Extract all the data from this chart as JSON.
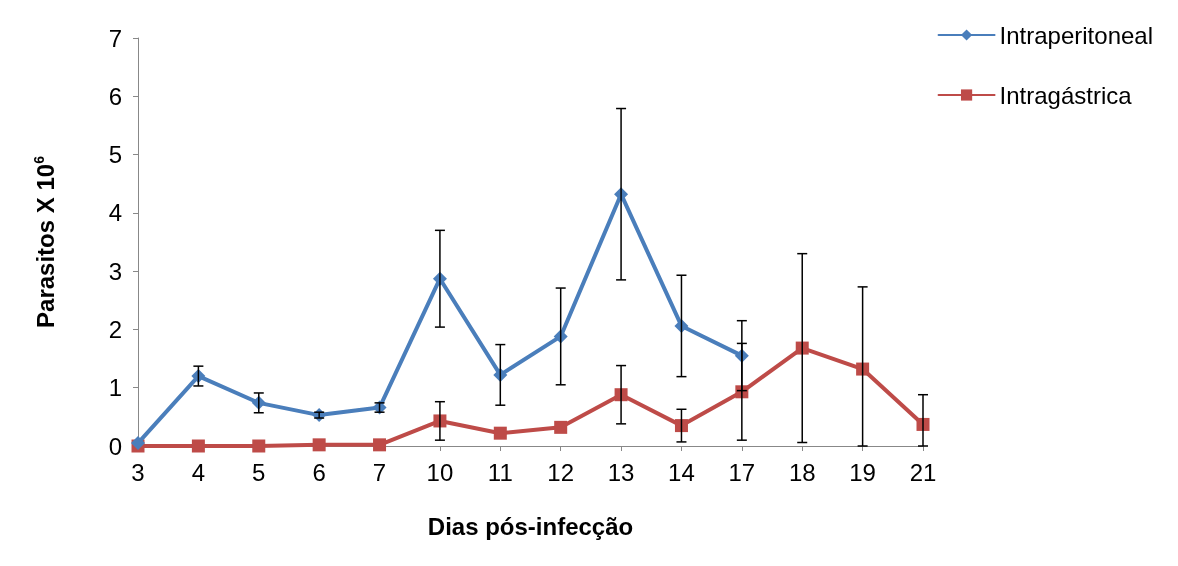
{
  "chart_data": {
    "type": "line",
    "xlabel": "Dias pós-infecção",
    "ylabel": "Parasitos X 10$^{6}$",
    "categories": [
      "3",
      "4",
      "5",
      "6",
      "7",
      "10",
      "11",
      "12",
      "13",
      "14",
      "17",
      "18",
      "19",
      "21"
    ],
    "series": [
      {
        "name": "Intraperitoneal",
        "color": "#4a7ebb",
        "marker": "diamond",
        "values": [
          0.05,
          1.2,
          0.74,
          0.53,
          0.66,
          2.87,
          1.22,
          1.88,
          4.32,
          2.06,
          1.55,
          null,
          null,
          null
        ],
        "errors": [
          null,
          0.17,
          0.17,
          0.05,
          0.08,
          0.83,
          0.52,
          0.83,
          1.47,
          0.87,
          0.6,
          null,
          null,
          null
        ]
      },
      {
        "name": "Intragástrica",
        "color": "#be4b48",
        "marker": "square",
        "values": [
          0,
          0,
          0,
          0.02,
          0.02,
          0.43,
          0.22,
          0.32,
          0.88,
          0.35,
          0.93,
          1.68,
          1.32,
          0.37
        ],
        "errors": [
          null,
          null,
          null,
          null,
          null,
          0.33,
          null,
          null,
          0.5,
          0.28,
          0.83,
          1.62,
          [
            0,
            2.73
          ],
          [
            0,
            0.88
          ]
        ]
      }
    ],
    "ylim": [
      0,
      7
    ],
    "yticks": [
      0,
      1,
      2,
      3,
      4,
      5,
      6,
      7
    ],
    "grid": false,
    "legend": "top right",
    "line_style": "solid"
  }
}
